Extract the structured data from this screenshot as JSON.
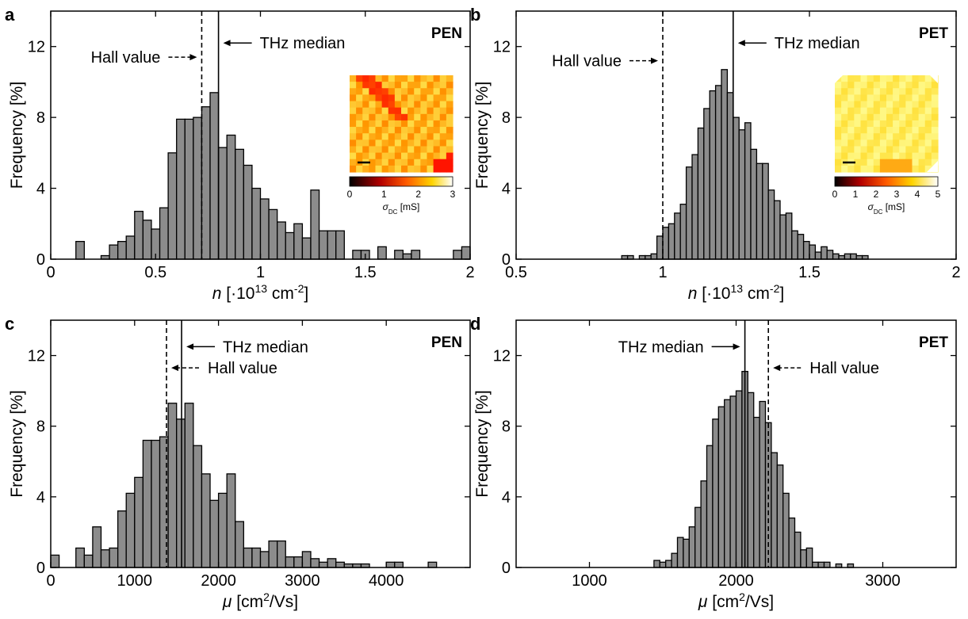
{
  "chart_data": [
    {
      "type": "bar",
      "panel": "a",
      "material": "PEN",
      "ylabel": "Frequency [%]",
      "xlabel": {
        "var": "n",
        "text": " [·10",
        "sup": "13",
        "text2": " cm",
        "sup2": "-2",
        "text3": "]"
      },
      "xlim": [
        0,
        2
      ],
      "ylim": [
        0,
        14
      ],
      "xticks": [
        0,
        0.5,
        1,
        1.5,
        2
      ],
      "xtick_labels": [
        "0",
        "0.5",
        "1",
        "1.5",
        "2"
      ],
      "yticks": [
        0,
        4,
        8,
        12
      ],
      "ytick_labels": [
        "0",
        "4",
        "8",
        "12"
      ],
      "bin_width": 0.04,
      "bin_centers": [
        0.14,
        0.18,
        0.22,
        0.26,
        0.3,
        0.34,
        0.38,
        0.42,
        0.46,
        0.5,
        0.54,
        0.58,
        0.62,
        0.66,
        0.7,
        0.74,
        0.78,
        0.82,
        0.86,
        0.9,
        0.94,
        0.98,
        1.02,
        1.06,
        1.1,
        1.14,
        1.18,
        1.22,
        1.26,
        1.3,
        1.34,
        1.38,
        1.42,
        1.46,
        1.5,
        1.54,
        1.58,
        1.62,
        1.66,
        1.7,
        1.74,
        1.78,
        1.82,
        1.86,
        1.9,
        1.94,
        1.98
      ],
      "values": [
        1.0,
        0,
        0,
        0.2,
        0.8,
        1.0,
        1.3,
        2.7,
        2.2,
        1.7,
        2.9,
        6.0,
        7.9,
        7.9,
        8.0,
        8.6,
        9.4,
        6.3,
        7.0,
        6.2,
        5.3,
        4.0,
        3.4,
        2.8,
        2.1,
        1.5,
        2.0,
        1.2,
        3.9,
        1.6,
        1.6,
        1.6,
        0,
        0.5,
        0.5,
        0,
        0.7,
        0,
        0.5,
        0.3,
        0.5,
        0,
        0,
        0,
        0,
        0.5,
        0.7
      ],
      "lines": [
        {
          "x": 0.72,
          "style": "dashed",
          "label": "Hall value",
          "label_side": "left",
          "arrow": "dashed",
          "y": 11.4
        },
        {
          "x": 0.8,
          "style": "solid",
          "label": "THz median",
          "label_side": "right",
          "arrow": "solid",
          "y": 12.2
        }
      ],
      "inset": {
        "colorbar_ticks": [
          "0",
          "1",
          "2",
          "3"
        ],
        "colorbar_label": "σ",
        "colorbar_sub": "DC",
        "colorbar_unit": " [mS]",
        "map_style": "pen"
      }
    },
    {
      "type": "bar",
      "panel": "b",
      "material": "PET",
      "ylabel": "Frequency [%]",
      "xlabel": {
        "var": "n",
        "text": " [·10",
        "sup": "13",
        "text2": " cm",
        "sup2": "-2",
        "text3": "]"
      },
      "xlim": [
        0.5,
        2
      ],
      "ylim": [
        0,
        14
      ],
      "xticks": [
        0.5,
        1,
        1.5,
        2
      ],
      "xtick_labels": [
        "0.5",
        "1",
        "1.5",
        "2"
      ],
      "yticks": [
        0,
        4,
        8,
        12
      ],
      "ytick_labels": [
        "0",
        "4",
        "8",
        "12"
      ],
      "bin_width": 0.02,
      "bin_centers": [
        0.87,
        0.89,
        0.91,
        0.93,
        0.95,
        0.97,
        0.99,
        1.01,
        1.03,
        1.05,
        1.07,
        1.09,
        1.11,
        1.13,
        1.15,
        1.17,
        1.19,
        1.21,
        1.23,
        1.25,
        1.27,
        1.29,
        1.31,
        1.33,
        1.35,
        1.37,
        1.39,
        1.41,
        1.43,
        1.45,
        1.47,
        1.49,
        1.51,
        1.53,
        1.55,
        1.57,
        1.59,
        1.61,
        1.63,
        1.65,
        1.67,
        1.69,
        1.71,
        1.73,
        1.75
      ],
      "values": [
        0.2,
        0.2,
        0,
        0.2,
        0.2,
        0.3,
        1.3,
        1.8,
        2.0,
        2.6,
        3.1,
        5.2,
        5.9,
        7.4,
        8.5,
        9.5,
        9.8,
        10.7,
        9.4,
        8.0,
        7.3,
        7.7,
        6.2,
        5.4,
        5.4,
        3.9,
        3.3,
        2.5,
        2.6,
        1.6,
        1.4,
        1.0,
        0.8,
        0.4,
        0.7,
        0.5,
        0.3,
        0.2,
        0.3,
        0.3,
        0.2,
        0.2,
        0,
        0,
        0
      ],
      "lines": [
        {
          "x": 1.0,
          "style": "dashed",
          "label": "Hall value",
          "label_side": "left",
          "arrow": "dashed",
          "y": 11.2
        },
        {
          "x": 1.24,
          "style": "solid",
          "label": "THz median",
          "label_side": "right",
          "arrow": "solid",
          "y": 12.2
        }
      ],
      "inset": {
        "colorbar_ticks": [
          "0",
          "1",
          "2",
          "3",
          "4",
          "5"
        ],
        "colorbar_label": "σ",
        "colorbar_sub": "DC",
        "colorbar_unit": " [mS]",
        "map_style": "pet"
      }
    },
    {
      "type": "bar",
      "panel": "c",
      "material": "PEN",
      "ylabel": "Frequency [%]",
      "xlabel": {
        "var": "μ",
        "text": " [cm",
        "sup": "2",
        "text2": "/Vs]"
      },
      "xlim": [
        0,
        5000
      ],
      "ylim": [
        0,
        14
      ],
      "xticks": [
        0,
        1000,
        2000,
        3000,
        4000
      ],
      "xtick_labels": [
        "0",
        "1000",
        "2000",
        "3000",
        "4000"
      ],
      "yticks": [
        0,
        4,
        8,
        12
      ],
      "ytick_labels": [
        "0",
        "4",
        "8",
        "12"
      ],
      "bin_width": 100,
      "bin_centers": [
        50,
        150,
        250,
        350,
        450,
        550,
        650,
        750,
        850,
        950,
        1050,
        1150,
        1250,
        1350,
        1450,
        1550,
        1650,
        1750,
        1850,
        1950,
        2050,
        2150,
        2250,
        2350,
        2450,
        2550,
        2650,
        2750,
        2850,
        2950,
        3050,
        3150,
        3250,
        3350,
        3450,
        3550,
        3650,
        3750,
        3850,
        3950,
        4050,
        4150,
        4250,
        4350,
        4450,
        4550,
        4650
      ],
      "values": [
        0.7,
        0,
        0,
        1.1,
        0.7,
        2.3,
        1.0,
        1.1,
        3.2,
        4.2,
        5.1,
        7.2,
        7.2,
        7.4,
        9.3,
        8.4,
        9.3,
        6.9,
        5.3,
        3.8,
        4.2,
        5.3,
        2.6,
        1.1,
        1.1,
        0.9,
        1.5,
        1.5,
        0.6,
        0.6,
        0.9,
        0.5,
        0.3,
        0.5,
        0.3,
        0.2,
        0.2,
        0.2,
        0,
        0,
        0.3,
        0.3,
        0,
        0,
        0,
        0.3,
        0
      ],
      "lines": [
        {
          "x": 1380,
          "style": "dashed",
          "label": "Hall value",
          "label_side": "right",
          "arrow": "dashed",
          "y": 11.3
        },
        {
          "x": 1560,
          "style": "solid",
          "label": "THz median",
          "label_side": "right",
          "arrow": "solid",
          "y": 12.5
        }
      ]
    },
    {
      "type": "bar",
      "panel": "d",
      "material": "PET",
      "ylabel": "Frequency [%]",
      "xlabel": {
        "var": "μ",
        "text": " [cm",
        "sup": "2",
        "text2": "/Vs]"
      },
      "xlim": [
        500,
        3500
      ],
      "ylim": [
        0,
        14
      ],
      "xticks": [
        1000,
        2000,
        3000
      ],
      "xtick_labels": [
        "1000",
        "2000",
        "3000"
      ],
      "yticks": [
        0,
        4,
        8,
        12
      ],
      "ytick_labels": [
        "0",
        "4",
        "8",
        "12"
      ],
      "bin_width": 40,
      "bin_centers": [
        1460,
        1500,
        1540,
        1580,
        1620,
        1660,
        1700,
        1740,
        1780,
        1820,
        1860,
        1900,
        1940,
        1980,
        2020,
        2060,
        2100,
        2140,
        2180,
        2220,
        2260,
        2300,
        2340,
        2380,
        2420,
        2460,
        2500,
        2540,
        2580,
        2620,
        2660,
        2700,
        2740,
        2780
      ],
      "values": [
        0.4,
        0.3,
        0.4,
        0.8,
        1.7,
        1.6,
        2.3,
        3.4,
        4.9,
        6.9,
        8.4,
        9.1,
        9.5,
        9.7,
        10.0,
        11.1,
        9.9,
        8.5,
        9.4,
        8.2,
        6.5,
        5.8,
        4.2,
        2.8,
        2.0,
        1.0,
        1.1,
        0.3,
        0.3,
        0.3,
        0,
        0.2,
        0,
        0.2
      ],
      "lines": [
        {
          "x": 2060,
          "style": "solid",
          "label": "THz median",
          "label_side": "left",
          "arrow": "solid",
          "y": 12.5
        },
        {
          "x": 2220,
          "style": "dashed",
          "label": "Hall value",
          "label_side": "right",
          "arrow": "dashed",
          "y": 11.3
        }
      ]
    }
  ]
}
